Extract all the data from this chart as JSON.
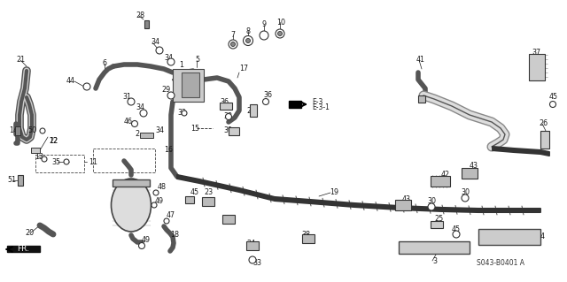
{
  "bg_color": "#f5f5f0",
  "line_color": "#1a1a1a",
  "catalog_number": "S043-B0401 A",
  "fig_width": 6.4,
  "fig_height": 3.19,
  "dpi": 100,
  "pipe_color": "#2a2a2a",
  "part_color": "#1a1a1a",
  "label_size": 5.8,
  "pipe_lw": 2.2,
  "thin_lw": 0.8,
  "med_lw": 1.4
}
